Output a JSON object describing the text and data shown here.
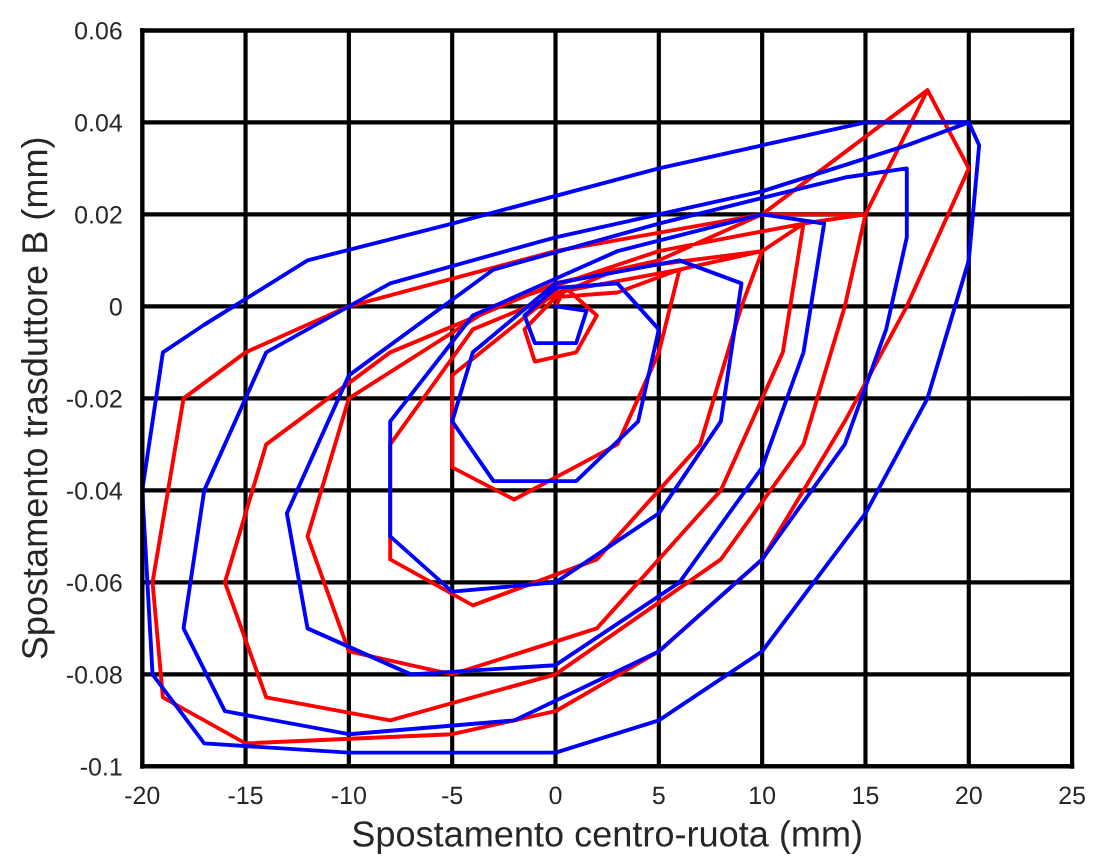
{
  "chart_data": {
    "type": "line",
    "xlabel": "Spostamento centro-ruota (mm)",
    "ylabel": "Spostamento trasduttore B (mm)",
    "xlim": [
      -20,
      25
    ],
    "ylim": [
      -0.1,
      0.06
    ],
    "xticks": [
      -20,
      -15,
      -10,
      -5,
      0,
      5,
      10,
      15,
      20,
      25
    ],
    "yticks": [
      -0.1,
      -0.08,
      -0.06,
      -0.04,
      -0.02,
      0,
      0.02,
      0.04,
      0.06
    ],
    "grid": true,
    "legend": false,
    "marker": "none",
    "line_style": "solid",
    "series": [
      {
        "color": "#ff0000",
        "x": [
          18,
          10,
          0,
          -10,
          -15,
          -18,
          -19.5,
          -19,
          -15,
          -5,
          0,
          5,
          10,
          14,
          17,
          20,
          18,
          15,
          10,
          5,
          0,
          -8,
          -14,
          -16,
          -14,
          -8,
          0,
          8,
          12,
          14,
          15,
          12,
          5,
          -3,
          -10,
          -12,
          -10,
          -5,
          2,
          8,
          11,
          12,
          10,
          3,
          -4,
          -8,
          -8,
          -4,
          2,
          7,
          9,
          10,
          6,
          0,
          -5,
          -5,
          -2,
          3,
          5,
          6,
          3,
          0,
          -1.5,
          -1,
          1,
          2,
          0.5,
          0
        ],
        "values": [
          0.047,
          0.02,
          0.012,
          0,
          -0.01,
          -0.02,
          -0.06,
          -0.085,
          -0.095,
          -0.093,
          -0.088,
          -0.075,
          -0.055,
          -0.025,
          0,
          0.03,
          0.047,
          0.02,
          0.02,
          0.01,
          0.005,
          -0.01,
          -0.03,
          -0.06,
          -0.085,
          -0.09,
          -0.08,
          -0.055,
          -0.03,
          0,
          0.02,
          0.018,
          0.012,
          0,
          -0.02,
          -0.05,
          -0.075,
          -0.08,
          -0.07,
          -0.04,
          -0.01,
          0.018,
          0.012,
          0.008,
          -0.005,
          -0.03,
          -0.055,
          -0.065,
          -0.055,
          -0.03,
          0,
          0.012,
          0.008,
          0.003,
          -0.015,
          -0.035,
          -0.042,
          -0.03,
          -0.01,
          0.008,
          0.003,
          0.002,
          -0.005,
          -0.012,
          -0.01,
          -0.002,
          0.004,
          0
        ]
      },
      {
        "color": "#0000ff",
        "x": [
          20,
          15,
          5,
          -5,
          -12,
          -17,
          -19,
          -20,
          -19.5,
          -17,
          -10,
          0,
          5,
          10,
          15,
          18,
          20,
          20.5,
          20,
          17,
          10,
          0,
          -8,
          -14,
          -17,
          -18,
          -16,
          -10,
          -2,
          5,
          10,
          14,
          16,
          17,
          17,
          14,
          5,
          -3,
          -10,
          -13,
          -12,
          -7,
          0,
          6,
          10,
          12,
          13,
          10,
          3,
          -4,
          -8,
          -8,
          -5,
          0,
          5,
          8,
          9,
          6,
          0,
          -4,
          -5,
          -3,
          1,
          4,
          5,
          3,
          0,
          -1.5,
          -1,
          1,
          1.5,
          0
        ],
        "values": [
          0.04,
          0.04,
          0.03,
          0.018,
          0.01,
          -0.004,
          -0.01,
          -0.04,
          -0.08,
          -0.095,
          -0.097,
          -0.097,
          -0.09,
          -0.075,
          -0.045,
          -0.02,
          0.01,
          0.035,
          0.04,
          0.035,
          0.025,
          0.015,
          0.005,
          -0.01,
          -0.04,
          -0.07,
          -0.088,
          -0.093,
          -0.09,
          -0.075,
          -0.055,
          -0.03,
          -0.005,
          0.015,
          0.03,
          0.028,
          0.018,
          0.008,
          -0.015,
          -0.045,
          -0.07,
          -0.08,
          -0.078,
          -0.06,
          -0.035,
          -0.01,
          0.018,
          0.02,
          0.012,
          -0.002,
          -0.025,
          -0.05,
          -0.062,
          -0.06,
          -0.045,
          -0.025,
          0.005,
          0.01,
          0.005,
          -0.01,
          -0.025,
          -0.038,
          -0.038,
          -0.025,
          -0.005,
          0.005,
          0.004,
          -0.002,
          -0.008,
          -0.008,
          -0.001,
          0
        ]
      }
    ]
  }
}
